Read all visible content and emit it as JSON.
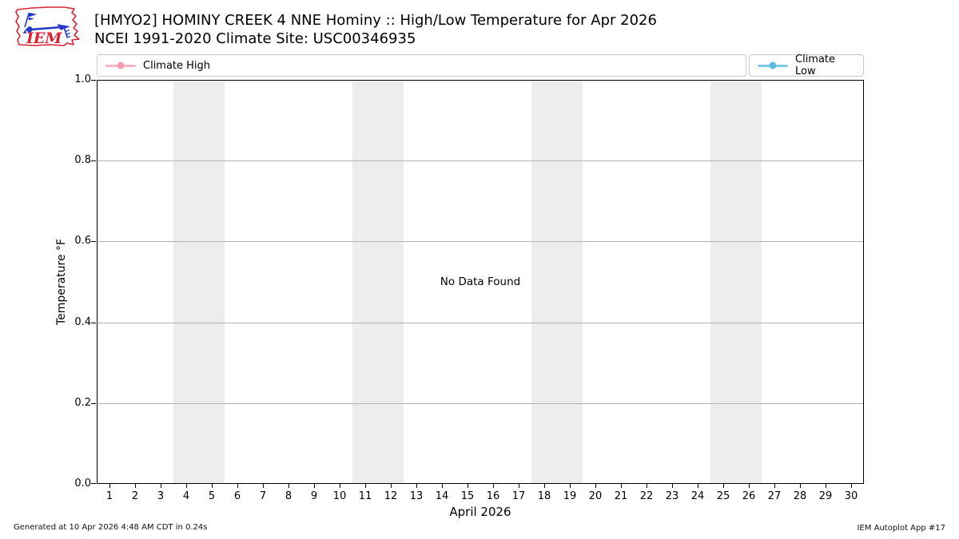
{
  "header": {
    "logo_text": "IEM",
    "title": "[HMYO2] HOMINY CREEK 4 NNE Hominy :: High/Low Temperature for Apr 2026",
    "subtitle": "NCEI 1991-2020 Climate Site: USC00346935"
  },
  "legend": {
    "entries": [
      {
        "label": "Climate High",
        "line_color": "#f8b4c3",
        "dot_color": "#f59eb3",
        "position": "left"
      },
      {
        "label": "Climate Low",
        "line_color": "#7ec8e8",
        "dot_color": "#5fb9de",
        "position": "right"
      }
    ]
  },
  "chart_data": {
    "type": "line",
    "title": "[HMYO2] HOMINY CREEK 4 NNE Hominy :: High/Low Temperature for Apr 2026",
    "subtitle": "NCEI 1991-2020 Climate Site: USC00346935",
    "xlabel": "April 2026",
    "ylabel": "Temperature °F",
    "xlim": [
      0.5,
      30.5
    ],
    "ylim": [
      0.0,
      1.0
    ],
    "x_ticks": [
      1,
      2,
      3,
      4,
      5,
      6,
      7,
      8,
      9,
      10,
      11,
      12,
      13,
      14,
      15,
      16,
      17,
      18,
      19,
      20,
      21,
      22,
      23,
      24,
      25,
      26,
      27,
      28,
      29,
      30
    ],
    "y_tick_values": [
      0.0,
      0.2,
      0.4,
      0.6,
      0.8,
      1.0
    ],
    "y_tick_labels": [
      "0.0",
      "0.2",
      "0.4",
      "0.6",
      "0.8",
      "1.0"
    ],
    "grid": "horizontal-only",
    "legend_position": "top, outside plot",
    "series": [
      {
        "name": "Climate High",
        "color": "#f8b4c3",
        "values": []
      },
      {
        "name": "Climate Low",
        "color": "#7ec8e8",
        "values": []
      }
    ],
    "no_data_text": "No Data Found",
    "weekend_bands": [
      [
        3.5,
        5.5
      ],
      [
        10.5,
        12.5
      ],
      [
        17.5,
        19.5
      ],
      [
        24.5,
        26.5
      ]
    ],
    "band_color": "#ededed",
    "grid_color": "#b2b2b2"
  },
  "footer": {
    "generated_text": "Generated at 10 Apr 2026 4:48 AM CDT in 0.24s",
    "app_text": "IEM Autoplot App #17"
  }
}
